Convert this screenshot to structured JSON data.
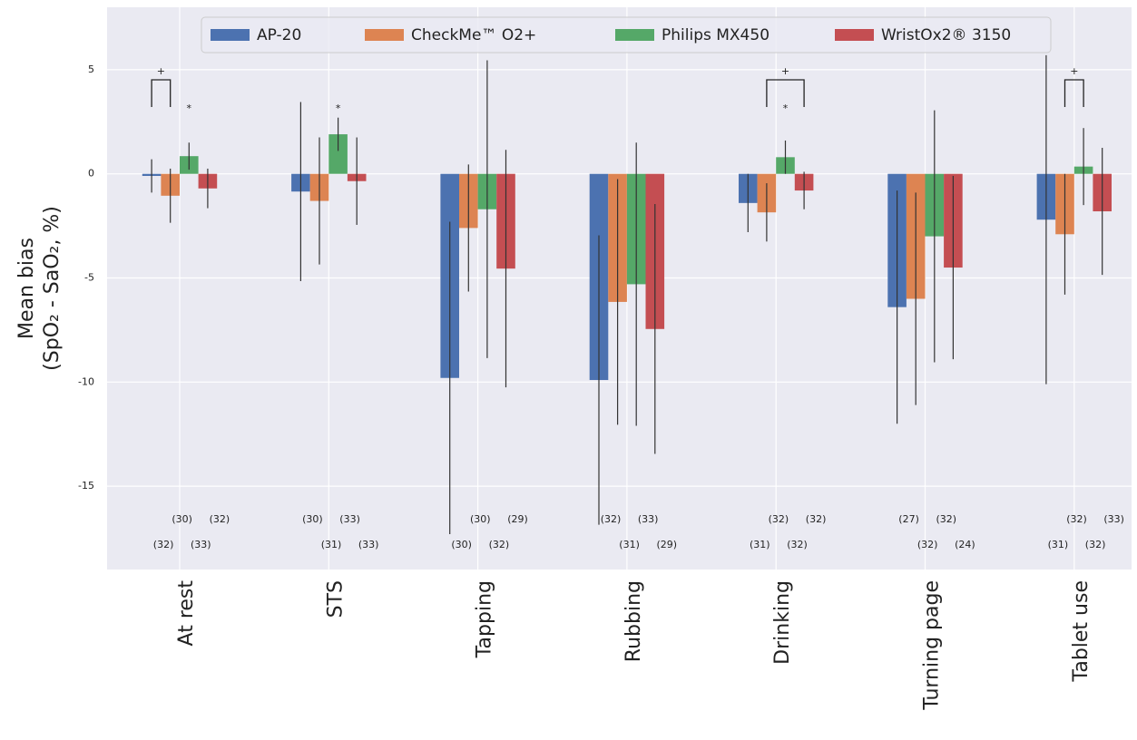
{
  "chart_data": {
    "type": "bar",
    "ylabel": [
      "Mean bias",
      "(SpO₂ - SaO₂, %)"
    ],
    "categories": [
      "At rest",
      "STS",
      "Tapping",
      "Rubbing",
      "Drinking",
      "Turning page",
      "Tablet use"
    ],
    "series": [
      {
        "name": "AP-20",
        "color": "#4c72b0",
        "values": [
          -0.1,
          -0.85,
          -9.8,
          -9.9,
          -1.4,
          -6.4,
          -2.2
        ],
        "errors": [
          0.8,
          4.3,
          7.5,
          6.95,
          1.4,
          5.6,
          7.9
        ],
        "n_labels": [
          "(32)",
          "(30)",
          "(30)",
          "(32)",
          "(31)",
          "(27)",
          "(31)"
        ]
      },
      {
        "name": "CheckMe™ O2+",
        "color": "#dd8452",
        "values": [
          -1.05,
          -1.3,
          -2.6,
          -6.15,
          -1.85,
          -6.0,
          -2.9
        ],
        "errors": [
          1.3,
          3.05,
          3.05,
          5.9,
          1.4,
          5.1,
          2.9
        ],
        "n_labels": [
          "(30)",
          "(31)",
          "(30)",
          "(31)",
          "(32)",
          "(32)",
          "(32)"
        ]
      },
      {
        "name": "Philips MX450",
        "color": "#55a868",
        "values": [
          0.85,
          1.9,
          -1.7,
          -5.3,
          0.8,
          -3.0,
          0.35
        ],
        "errors": [
          0.65,
          0.8,
          7.15,
          6.8,
          0.8,
          6.05,
          1.85
        ],
        "n_labels": [
          "(33)",
          "(33)",
          "(32)",
          "(33)",
          "(32)",
          "(32)",
          "(32)"
        ]
      },
      {
        "name": "WristOx2® 3150",
        "color": "#c44e52",
        "values": [
          -0.7,
          -0.35,
          -4.55,
          -7.45,
          -0.8,
          -4.5,
          -1.8
        ],
        "errors": [
          0.95,
          2.1,
          5.7,
          6.0,
          0.9,
          4.4,
          3.05
        ],
        "n_labels": [
          "(32)",
          "(33)",
          "(29)",
          "(29)",
          "(32)",
          "(24)",
          "(33)"
        ]
      }
    ],
    "ylim": [
      -19,
      8
    ],
    "yticks": [
      -15,
      -10,
      -5,
      0,
      5
    ],
    "grid": true,
    "brackets": [
      {
        "text": "+",
        "category": "At rest",
        "from": "AP-20",
        "to": "CheckMe™ O2+"
      },
      {
        "text": "+",
        "category": "Drinking",
        "from": "CheckMe™ O2+",
        "to": "WristOx2® 3150"
      },
      {
        "text": "+",
        "category": "Tablet use",
        "from": "CheckMe™ O2+",
        "to": "Philips MX450"
      }
    ],
    "stars": [
      {
        "text": "*",
        "category": "At rest",
        "series": "Philips MX450"
      },
      {
        "text": "*",
        "category": "STS",
        "series": "Philips MX450"
      },
      {
        "text": "*",
        "category": "Drinking",
        "series": "Philips MX450"
      }
    ]
  }
}
